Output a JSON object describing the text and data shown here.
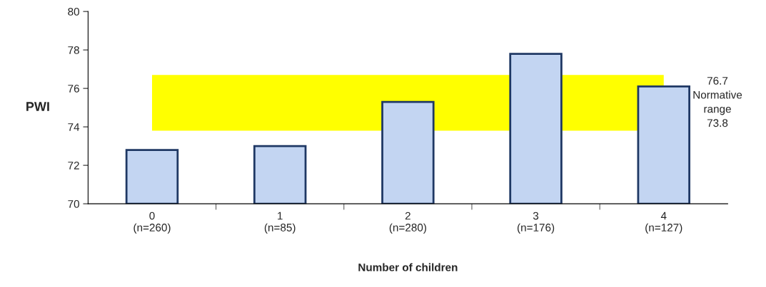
{
  "chart_data": {
    "type": "bar",
    "ylabel": "PWI",
    "xlabel": "Number of children",
    "categories": [
      "0\n(n=260)",
      "1\n(n=85)",
      "2\n(n=280)",
      "3\n(n=176)",
      "4\n(n=127)"
    ],
    "values": [
      72.8,
      73.0,
      75.3,
      77.8,
      76.1
    ],
    "color": "#c3d5f2",
    "ylim": [
      70,
      80
    ],
    "yticks": [
      70,
      72,
      74,
      76,
      78,
      80
    ],
    "grid": false,
    "bands": [
      {
        "axis": "y",
        "from": 73.8,
        "to": 76.7,
        "label": "76.7\nNormative\nrange\n73.8",
        "color": "#ffff00"
      }
    ]
  }
}
